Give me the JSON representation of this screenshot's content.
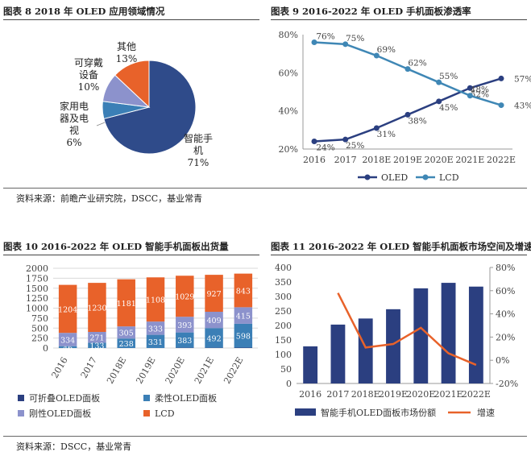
{
  "sources": {
    "top": "资料来源：前瞻产业研究院，DSCC，基业常青",
    "bottom": "资料来源：DSCC，基业常青"
  },
  "chart_data": [
    {
      "id": "fig8",
      "type": "pie",
      "title": "图表 8 2018 年 OLED 应用领域情况",
      "slices": [
        {
          "label": "智能手机",
          "value": 71,
          "text": "71%",
          "color": "#2f4b8a"
        },
        {
          "label": "家用电器及电视",
          "value": 6,
          "text": "6%",
          "color": "#3b7fb6"
        },
        {
          "label": "可穿戴设备",
          "value": 10,
          "text": "10%",
          "color": "#8c92cc"
        },
        {
          "label": "其他",
          "value": 13,
          "text": "13%",
          "color": "#e8622a"
        }
      ]
    },
    {
      "id": "fig9",
      "type": "line",
      "title": "图表 9 2016-2022 年 OLED 手机面板渗透率",
      "categories": [
        "2016",
        "2017",
        "2018E",
        "2019E",
        "2020E",
        "2021E",
        "2022E"
      ],
      "ylim": [
        20,
        80
      ],
      "yticks": [
        20,
        40,
        60,
        80
      ],
      "ytick_labels": [
        "20%",
        "40%",
        "60%",
        "80%"
      ],
      "series": [
        {
          "name": "OLED",
          "color": "#2b3f80",
          "values": [
            24,
            25,
            31,
            38,
            45,
            52,
            57
          ],
          "labels": [
            "24%",
            "25%",
            "31%",
            "38%",
            "45%",
            "52%",
            "57%"
          ]
        },
        {
          "name": "LCD",
          "color": "#3f87b5",
          "values": [
            76,
            75,
            69,
            62,
            55,
            48,
            43
          ],
          "labels": [
            "76%",
            "75%",
            "69%",
            "62%",
            "55%",
            "48%",
            "43%"
          ]
        }
      ],
      "legend": "bottom"
    },
    {
      "id": "fig10",
      "type": "bar",
      "stacked": true,
      "title": "图表 10 2016-2022 年 OLED 智能手机面板出货量",
      "categories": [
        "2016",
        "2017",
        "2018E",
        "2019E",
        "2020E",
        "2021E",
        "2022E"
      ],
      "ylim": [
        0,
        2000
      ],
      "yticks": [
        0,
        250,
        500,
        750,
        1000,
        1250,
        1500,
        1750,
        2000
      ],
      "series": [
        {
          "name": "可折叠OLED面板",
          "color": "#2b3f80",
          "values": [
            0,
            0,
            0,
            0,
            8,
            8,
            10
          ],
          "labels": [
            "",
            "",
            "",
            "",
            "8",
            "8",
            "10"
          ]
        },
        {
          "name": "柔性OLED面板",
          "color": "#3b7fb6",
          "values": [
            46,
            133,
            238,
            331,
            383,
            492,
            598
          ],
          "labels": [
            "46",
            "133",
            "238",
            "331",
            "383",
            "492",
            "598"
          ]
        },
        {
          "name": "刚性OLED面板",
          "color": "#8c92cc",
          "values": [
            334,
            271,
            305,
            333,
            393,
            409,
            415
          ],
          "labels": [
            "334",
            "271",
            "305",
            "333",
            "393",
            "409",
            "415"
          ]
        },
        {
          "name": "LCD",
          "color": "#e8622a",
          "values": [
            1204,
            1230,
            1181,
            1108,
            1029,
            927,
            843
          ],
          "labels": [
            "1204",
            "1230",
            "1181",
            "1108",
            "1029",
            "927",
            "843"
          ]
        }
      ],
      "grid": true,
      "legend": "bottom"
    },
    {
      "id": "fig11",
      "type": "bar",
      "title": "图表 11 2016-2022 年 OLED 智能手机面板市场空间及增速",
      "categories": [
        "2016",
        "2017",
        "2018E",
        "2019E",
        "2020E",
        "2021E",
        "2022E"
      ],
      "ylim": [
        0,
        400
      ],
      "yticks": [
        0,
        50,
        100,
        150,
        200,
        250,
        300,
        350,
        400
      ],
      "y2lim": [
        -20,
        80
      ],
      "y2ticks": [
        -20,
        0,
        20,
        40,
        60,
        80
      ],
      "y2tick_labels": [
        "-20%",
        "0%",
        "20%",
        "40%",
        "60%",
        "80%"
      ],
      "series": [
        {
          "name": "智能手机OLED面板市场份额",
          "kind": "bar",
          "color": "#2b3f80",
          "values": [
            128,
            203,
            224,
            256,
            328,
            347,
            334
          ]
        },
        {
          "name": "增速",
          "kind": "line",
          "axis": "right",
          "color": "#e8622a",
          "values": [
            null,
            58,
            11,
            14,
            28,
            6,
            -4
          ]
        }
      ],
      "grid": false,
      "legend": "bottom"
    }
  ]
}
